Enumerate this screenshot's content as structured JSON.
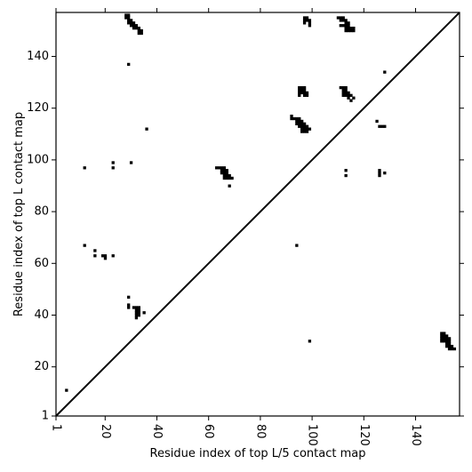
{
  "chart_data": {
    "type": "heatmap",
    "title": "",
    "xlabel": "Residue index of top L/5 contact map",
    "ylabel": "Residue index of top L contact map",
    "xlim": [
      1,
      157
    ],
    "ylim": [
      1,
      157
    ],
    "grid": false,
    "x_ticks": [
      1,
      20,
      40,
      60,
      80,
      100,
      120,
      140
    ],
    "y_ticks": [
      1,
      20,
      40,
      60,
      80,
      100,
      120,
      140
    ],
    "diagonal": {
      "from": [
        1,
        1
      ],
      "to": [
        157,
        157
      ]
    },
    "colors": {
      "contact": "#000000",
      "background": "#ffffff",
      "frame": "#000000"
    },
    "contacts_top_L": [
      [
        28,
        156
      ],
      [
        29,
        156
      ],
      [
        28,
        155
      ],
      [
        29,
        155
      ],
      [
        29,
        154
      ],
      [
        30,
        154
      ],
      [
        29,
        153
      ],
      [
        30,
        153
      ],
      [
        31,
        153
      ],
      [
        30,
        152
      ],
      [
        31,
        152
      ],
      [
        32,
        152
      ],
      [
        31,
        151
      ],
      [
        32,
        151
      ],
      [
        33,
        151
      ],
      [
        33,
        150
      ],
      [
        34,
        150
      ],
      [
        33,
        149
      ],
      [
        34,
        149
      ],
      [
        97,
        155
      ],
      [
        98,
        155
      ],
      [
        97,
        154
      ],
      [
        98,
        154
      ],
      [
        99,
        154
      ],
      [
        97,
        153
      ],
      [
        99,
        153
      ],
      [
        99,
        152
      ],
      [
        110,
        155
      ],
      [
        111,
        155
      ],
      [
        112,
        155
      ],
      [
        111,
        154
      ],
      [
        112,
        154
      ],
      [
        113,
        154
      ],
      [
        113,
        153
      ],
      [
        114,
        153
      ],
      [
        111,
        152
      ],
      [
        112,
        152
      ],
      [
        113,
        152
      ],
      [
        114,
        152
      ],
      [
        113,
        151
      ],
      [
        114,
        151
      ],
      [
        115,
        151
      ],
      [
        116,
        151
      ],
      [
        113,
        150
      ],
      [
        114,
        150
      ],
      [
        115,
        150
      ],
      [
        116,
        150
      ],
      [
        29,
        137
      ],
      [
        128,
        134
      ],
      [
        95,
        128
      ],
      [
        96,
        128
      ],
      [
        97,
        128
      ],
      [
        95,
        127
      ],
      [
        96,
        127
      ],
      [
        97,
        127
      ],
      [
        95,
        126
      ],
      [
        96,
        126
      ],
      [
        97,
        126
      ],
      [
        98,
        126
      ],
      [
        95,
        125
      ],
      [
        97,
        125
      ],
      [
        98,
        125
      ],
      [
        111,
        128
      ],
      [
        112,
        128
      ],
      [
        113,
        128
      ],
      [
        112,
        127
      ],
      [
        113,
        127
      ],
      [
        112,
        126
      ],
      [
        113,
        126
      ],
      [
        114,
        126
      ],
      [
        112,
        125
      ],
      [
        113,
        125
      ],
      [
        114,
        125
      ],
      [
        115,
        125
      ],
      [
        114,
        124
      ],
      [
        116,
        124
      ],
      [
        115,
        123
      ],
      [
        92,
        117
      ],
      [
        92,
        116
      ],
      [
        93,
        116
      ],
      [
        94,
        116
      ],
      [
        95,
        116
      ],
      [
        94,
        115
      ],
      [
        95,
        115
      ],
      [
        96,
        115
      ],
      [
        94,
        114
      ],
      [
        95,
        114
      ],
      [
        96,
        114
      ],
      [
        97,
        114
      ],
      [
        95,
        113
      ],
      [
        96,
        113
      ],
      [
        97,
        113
      ],
      [
        98,
        113
      ],
      [
        96,
        112
      ],
      [
        97,
        112
      ],
      [
        98,
        112
      ],
      [
        99,
        112
      ],
      [
        96,
        111
      ],
      [
        97,
        111
      ],
      [
        98,
        111
      ],
      [
        125,
        115
      ],
      [
        126,
        113
      ],
      [
        127,
        113
      ],
      [
        128,
        113
      ],
      [
        36,
        112
      ],
      [
        12,
        97
      ],
      [
        23,
        99
      ],
      [
        23,
        97
      ],
      [
        30,
        99
      ],
      [
        63,
        97
      ],
      [
        64,
        97
      ],
      [
        65,
        97
      ],
      [
        66,
        97
      ],
      [
        65,
        96
      ],
      [
        66,
        96
      ],
      [
        67,
        96
      ],
      [
        65,
        95
      ],
      [
        66,
        95
      ],
      [
        67,
        95
      ],
      [
        66,
        94
      ],
      [
        67,
        94
      ],
      [
        68,
        94
      ],
      [
        66,
        93
      ],
      [
        67,
        93
      ],
      [
        68,
        93
      ],
      [
        69,
        93
      ],
      [
        68,
        90
      ],
      [
        113,
        96
      ],
      [
        113,
        94
      ],
      [
        126,
        96
      ],
      [
        126,
        95
      ],
      [
        126,
        94
      ],
      [
        128,
        95
      ],
      [
        12,
        67
      ],
      [
        94,
        67
      ],
      [
        16,
        65
      ],
      [
        16,
        63
      ],
      [
        19,
        63
      ],
      [
        20,
        63
      ],
      [
        23,
        63
      ],
      [
        20,
        62
      ],
      [
        29,
        47
      ],
      [
        29,
        44
      ],
      [
        29,
        43
      ],
      [
        31,
        43
      ],
      [
        32,
        43
      ],
      [
        33,
        43
      ],
      [
        32,
        42
      ],
      [
        33,
        42
      ],
      [
        32,
        41
      ],
      [
        33,
        41
      ],
      [
        35,
        41
      ],
      [
        32,
        40
      ],
      [
        33,
        40
      ],
      [
        32,
        39
      ],
      [
        99,
        30
      ],
      [
        5,
        11
      ]
    ],
    "contacts_top_L5": [
      [
        150,
        33
      ],
      [
        151,
        33
      ],
      [
        150,
        32
      ],
      [
        151,
        32
      ],
      [
        152,
        32
      ],
      [
        150,
        31
      ],
      [
        151,
        31
      ],
      [
        152,
        31
      ],
      [
        153,
        31
      ],
      [
        150,
        30
      ],
      [
        151,
        30
      ],
      [
        152,
        30
      ],
      [
        153,
        30
      ],
      [
        152,
        29
      ],
      [
        153,
        29
      ],
      [
        152,
        28
      ],
      [
        153,
        28
      ],
      [
        154,
        28
      ],
      [
        153,
        27
      ],
      [
        154,
        27
      ],
      [
        155,
        27
      ]
    ]
  }
}
